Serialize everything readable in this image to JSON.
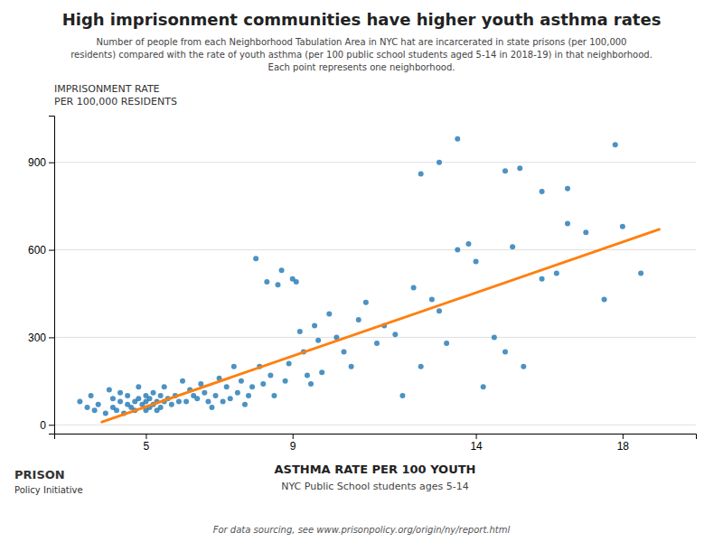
{
  "chart_data": {
    "type": "scatter",
    "title": "High imprisonment communities have higher youth asthma rates",
    "subtitle": "Number of people from each Neighborhood Tabulation Area in NYC hat are incarcerated in state prisons (per 100,000\nresidents) compared with the rate of youth asthma (per 100 public school students aged 5-14 in 2018-19) in that neighborhood.\nEach point represents one neighborhood.",
    "x_label": [
      "ASTHMA RATE PER 100 YOUTH",
      "NYC Public School students ages 5-14"
    ],
    "y_label": [
      "IMPRISONMENT RATE",
      "PER 100,000 RESIDENTS"
    ],
    "footer": "For data sourcing, see www.prisonpolicy.org/origin/ny/report.html",
    "annotations": [
      "PRISON",
      "Policy Initiative"
    ],
    "xlim": [
      2.5,
      20
    ],
    "ylim": [
      -30,
      1060
    ],
    "xticks": [
      5,
      9,
      14,
      18
    ],
    "yticks": [
      0,
      300,
      600,
      900
    ],
    "grid": "y",
    "series": [
      {
        "type": "scatter",
        "x": [
          3.2,
          3.4,
          3.5,
          3.6,
          3.7,
          3.9,
          4.0,
          4.1,
          4.1,
          4.2,
          4.3,
          4.3,
          4.4,
          4.5,
          4.5,
          4.6,
          4.7,
          4.7,
          4.8,
          4.8,
          4.9,
          5.0,
          5.0,
          5.0,
          5.1,
          5.1,
          5.2,
          5.2,
          5.3,
          5.3,
          5.4,
          5.4,
          5.5,
          5.5,
          5.6,
          5.7,
          5.8,
          5.9,
          6.0,
          6.1,
          6.2,
          6.3,
          6.4,
          6.5,
          6.6,
          6.7,
          6.8,
          6.9,
          7.0,
          7.1,
          7.2,
          7.3,
          7.4,
          7.5,
          7.6,
          7.7,
          7.8,
          7.9,
          8.0,
          8.1,
          8.2,
          8.3,
          8.4,
          8.5,
          8.6,
          8.7,
          8.8,
          8.9,
          9.0,
          9.1,
          9.2,
          9.3,
          9.4,
          9.5,
          9.6,
          9.7,
          9.8,
          10.0,
          10.2,
          10.4,
          10.6,
          10.8,
          11.0,
          11.3,
          11.5,
          11.8,
          12.0,
          12.3,
          12.5,
          12.8,
          13.0,
          13.2,
          13.5,
          13.8,
          14.0,
          14.2,
          14.5,
          14.8,
          15.0,
          15.3,
          15.8,
          16.2,
          16.5,
          17.0,
          17.5,
          18.0,
          18.5,
          13.5,
          17.8,
          15.2,
          14.8,
          16.5,
          15.8,
          13.0,
          12.5
        ],
        "values": [
          80,
          60,
          100,
          50,
          70,
          40,
          120,
          60,
          90,
          50,
          80,
          110,
          40,
          70,
          100,
          60,
          80,
          50,
          90,
          130,
          70,
          100,
          50,
          80,
          60,
          90,
          70,
          110,
          80,
          50,
          100,
          60,
          130,
          80,
          90,
          70,
          100,
          80,
          150,
          80,
          120,
          100,
          90,
          140,
          110,
          80,
          60,
          100,
          160,
          80,
          130,
          90,
          200,
          110,
          150,
          70,
          100,
          130,
          570,
          200,
          140,
          490,
          170,
          100,
          480,
          530,
          150,
          210,
          500,
          490,
          320,
          250,
          170,
          140,
          340,
          290,
          180,
          380,
          300,
          250,
          200,
          360,
          420,
          280,
          340,
          310,
          100,
          470,
          200,
          430,
          390,
          280,
          600,
          620,
          560,
          130,
          300,
          250,
          610,
          200,
          500,
          520,
          690,
          660,
          430,
          680,
          520,
          980,
          960,
          880,
          870,
          810,
          800,
          900,
          860
        ]
      },
      {
        "type": "line",
        "x": [
          3.8,
          19.0
        ],
        "values": [
          10,
          670
        ]
      }
    ]
  }
}
